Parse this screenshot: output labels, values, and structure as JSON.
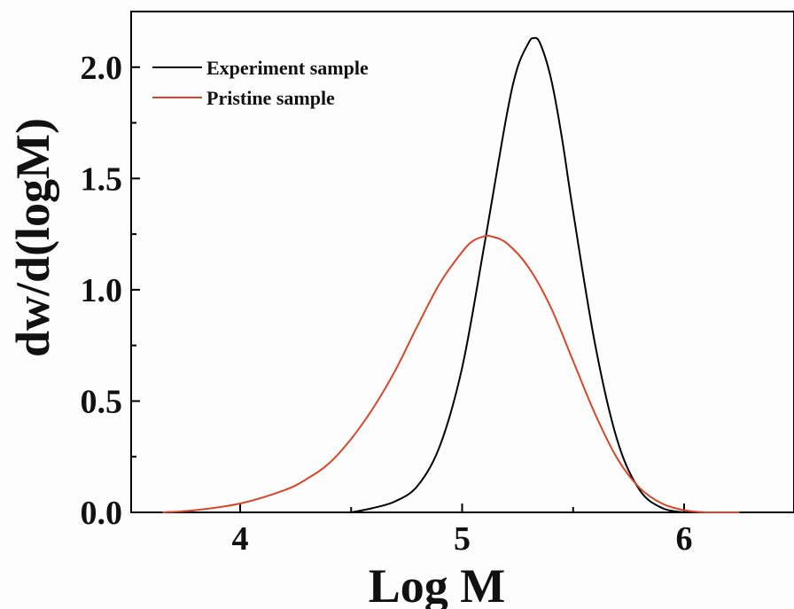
{
  "chart_data": {
    "type": "line",
    "xlabel": "Log M",
    "ylabel": "dw/d(logM)",
    "xlim": [
      3.5,
      6.5
    ],
    "ylim": [
      0,
      2.25
    ],
    "x_ticks": [
      "4",
      "5",
      "6"
    ],
    "y_ticks": [
      "0.0",
      "0.5",
      "1.0",
      "1.5",
      "2.0"
    ],
    "legend_position": "top-left",
    "grid": false,
    "series": [
      {
        "name": "Experiment sample",
        "color": "#000000",
        "x": [
          4.5,
          4.6,
          4.7,
          4.8,
          4.9,
          5.0,
          5.1,
          5.2,
          5.25,
          5.3,
          5.32,
          5.35,
          5.4,
          5.45,
          5.5,
          5.6,
          5.7,
          5.8,
          5.9,
          6.0
        ],
        "y": [
          0.0,
          0.02,
          0.05,
          0.12,
          0.3,
          0.65,
          1.2,
          1.78,
          2.0,
          2.11,
          2.13,
          2.11,
          1.95,
          1.68,
          1.35,
          0.75,
          0.32,
          0.1,
          0.02,
          0.0
        ]
      },
      {
        "name": "Pristine sample",
        "color": "#d9452b",
        "x": [
          3.65,
          3.8,
          4.0,
          4.2,
          4.3,
          4.4,
          4.5,
          4.6,
          4.7,
          4.8,
          4.9,
          5.0,
          5.05,
          5.1,
          5.13,
          5.2,
          5.3,
          5.4,
          5.5,
          5.6,
          5.7,
          5.8,
          5.9,
          6.0,
          6.1,
          6.25
        ],
        "y": [
          0.0,
          0.01,
          0.04,
          0.1,
          0.15,
          0.22,
          0.33,
          0.47,
          0.64,
          0.84,
          1.03,
          1.17,
          1.22,
          1.24,
          1.24,
          1.21,
          1.1,
          0.92,
          0.68,
          0.44,
          0.24,
          0.11,
          0.04,
          0.01,
          0.0,
          0.0
        ]
      }
    ]
  }
}
